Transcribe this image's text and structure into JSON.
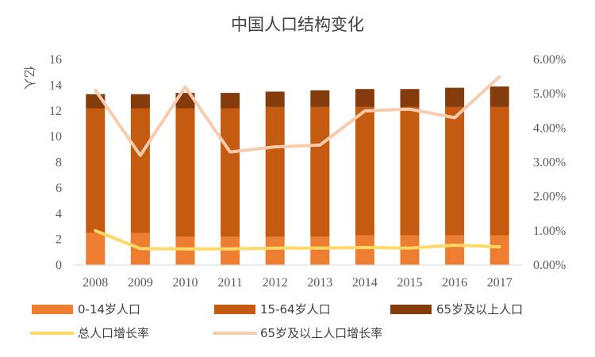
{
  "chart_data": {
    "type": "bar",
    "title": "中国人口结构变化",
    "ylabel": "亿人",
    "categories": [
      "2008",
      "2009",
      "2010",
      "2011",
      "2012",
      "2013",
      "2014",
      "2015",
      "2016",
      "2017"
    ],
    "ylim": [
      0,
      16
    ],
    "y_ticks": [
      0,
      2,
      4,
      6,
      8,
      10,
      12,
      14,
      16
    ],
    "y2lim": [
      0,
      6
    ],
    "y2_ticks": [
      "0.00%",
      "1.00%",
      "2.00%",
      "3.00%",
      "4.00%",
      "5.00%",
      "6.00%"
    ],
    "stacked_series": [
      {
        "name": "0-14岁人口",
        "color": "#ed7d31",
        "values": [
          2.5,
          2.5,
          2.2,
          2.2,
          2.2,
          2.2,
          2.3,
          2.3,
          2.3,
          2.3
        ]
      },
      {
        "name": "15-64岁人口",
        "color": "#c55a11",
        "values": [
          9.7,
          9.7,
          10.0,
          10.0,
          10.1,
          10.1,
          10.0,
          10.0,
          10.0,
          10.0
        ]
      },
      {
        "name": "65岁及以上人口",
        "color": "#843c0c",
        "values": [
          1.1,
          1.1,
          1.2,
          1.2,
          1.2,
          1.3,
          1.4,
          1.4,
          1.5,
          1.6
        ]
      }
    ],
    "line_series": [
      {
        "name": "总人口增长率",
        "color": "#ffd966",
        "values": [
          1.0,
          0.48,
          0.47,
          0.47,
          0.49,
          0.49,
          0.51,
          0.49,
          0.58,
          0.53
        ]
      },
      {
        "name": "65岁及以上人口增长率",
        "color": "#f8cbad",
        "values": [
          5.1,
          3.2,
          5.2,
          3.3,
          3.45,
          3.5,
          4.5,
          4.55,
          4.3,
          5.5
        ]
      }
    ],
    "legend": "bottom",
    "grid": false
  }
}
